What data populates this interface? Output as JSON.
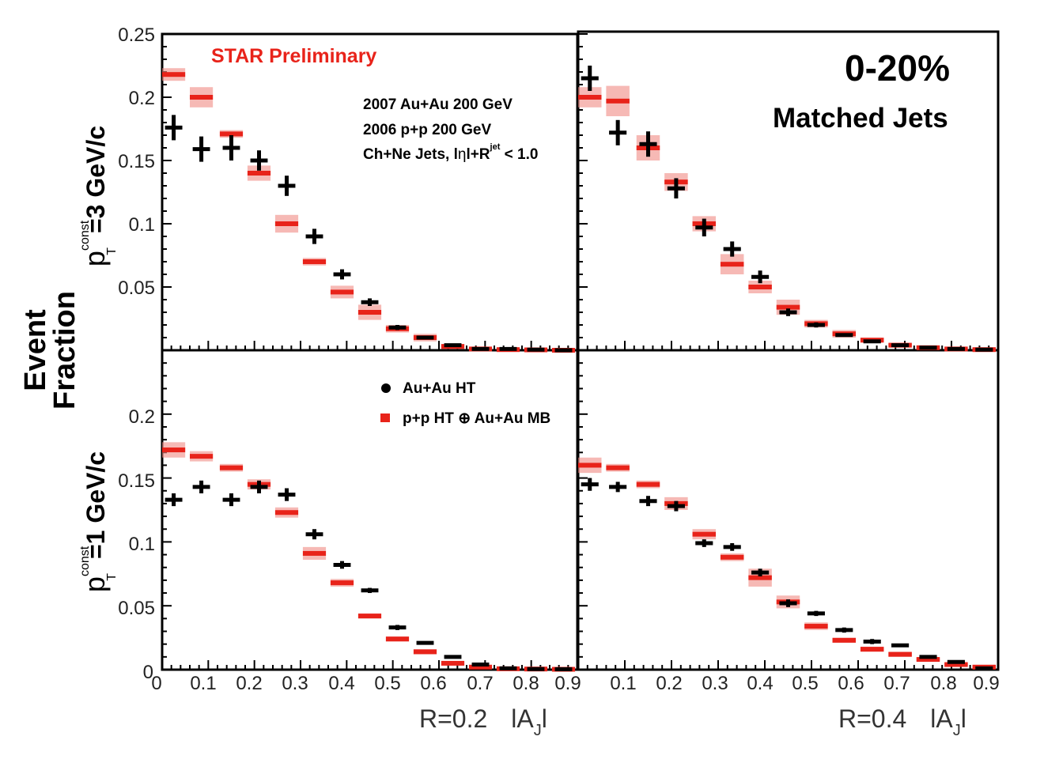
{
  "chart_data": {
    "type": "scatter",
    "figure_title": "0-20%",
    "figure_subtitle": "Matched Jets",
    "watermark": "STAR Preliminary",
    "ylabel": "Event Fraction",
    "ylabel_line1": "Event",
    "ylabel_line2": "Fraction",
    "row_labels": {
      "top": {
        "main": "p",
        "sup": "const",
        "sub": "T",
        "rest": "=3 GeV/c"
      },
      "bottom": {
        "main": "p",
        "sup": "const",
        "sub": "T",
        "rest": "=1 GeV/c"
      }
    },
    "annotations": {
      "line1": "2007 Au+Au 200 GeV",
      "line2": "2006 p+p 200 GeV",
      "line3_a": "Ch+Ne Jets, l",
      "line3_eta": "η",
      "line3_b": "l+R",
      "line3_sup": "jet",
      "line3_c": " < 1.0"
    },
    "legend": [
      {
        "label": "Au+Au HT",
        "color": "#000000",
        "marker": "dot"
      },
      {
        "label": "p+p HT ⊕ Au+Au MB",
        "color": "#e8231a",
        "marker": "square"
      }
    ],
    "xlabels": [
      {
        "r": "R=0.2",
        "a": "lA",
        "sub": "J",
        "end": "l"
      },
      {
        "r": "R=0.4",
        "a": "lA",
        "sub": "J",
        "end": "l"
      }
    ],
    "x_ticks_left": [
      "0",
      "0.1",
      "0.2",
      "0.3",
      "0.4",
      "0.5",
      "0.6",
      "0.7",
      "0.8",
      "0.9"
    ],
    "x_ticks_right": [
      "0.1",
      "0.2",
      "0.3",
      "0.4",
      "0.5",
      "0.6",
      "0.7",
      "0.8",
      "0.9"
    ],
    "y_ticks_top": [
      "0.25",
      "0.2",
      "0.15",
      "0.1",
      "0.05"
    ],
    "y_ticks_bottom": [
      "0.2",
      "0.15",
      "0.1",
      "0.05",
      "0"
    ],
    "xlim": [
      0,
      0.9
    ],
    "ylim": [
      0,
      0.25
    ],
    "x": [
      0.025,
      0.085,
      0.15,
      0.21,
      0.27,
      0.33,
      0.39,
      0.45,
      0.51,
      0.57,
      0.63,
      0.69,
      0.75,
      0.81,
      0.87
    ],
    "series_names": [
      "Au+Au HT",
      "p+p HT ⊕ Au+Au MB"
    ],
    "panels": [
      {
        "name": "R=0.2, pT const = 3 GeV/c",
        "auau": [
          0.176,
          0.159,
          0.16,
          0.15,
          0.13,
          0.09,
          0.06,
          0.038,
          0.018,
          0.01,
          0.004,
          0.001,
          0.001,
          0.0005,
          0.0
        ],
        "auau_err": [
          0.01,
          0.01,
          0.01,
          0.008,
          0.008,
          0.006,
          0.004,
          0.003,
          0.002,
          0.001,
          0.001,
          0.0005,
          0.0005,
          0.0003,
          0.0
        ],
        "pp": [
          0.218,
          0.2,
          0.171,
          0.14,
          0.1,
          0.07,
          0.046,
          0.03,
          0.017,
          0.01,
          0.003,
          0.001,
          0.0005,
          0.0003,
          0.0
        ],
        "pp_sys": [
          0.005,
          0.008,
          0.003,
          0.006,
          0.007,
          0.003,
          0.005,
          0.006,
          0.003,
          0.003,
          0.002,
          0.001,
          0.001,
          0.0005,
          0.0
        ]
      },
      {
        "name": "R=0.4, pT const = 3 GeV/c",
        "auau": [
          0.215,
          0.172,
          0.163,
          0.128,
          0.097,
          0.08,
          0.058,
          0.03,
          0.02,
          0.012,
          0.007,
          0.004,
          0.002,
          0.001,
          0.0005
        ],
        "auau_err": [
          0.01,
          0.01,
          0.01,
          0.008,
          0.007,
          0.006,
          0.005,
          0.003,
          0.002,
          0.001,
          0.001,
          0.001,
          0.0005,
          0.0003,
          0.0002
        ],
        "pp": [
          0.2,
          0.197,
          0.16,
          0.133,
          0.1,
          0.068,
          0.05,
          0.034,
          0.021,
          0.013,
          0.008,
          0.004,
          0.002,
          0.001,
          0.0005
        ],
        "pp_sys": [
          0.008,
          0.012,
          0.01,
          0.007,
          0.006,
          0.008,
          0.005,
          0.006,
          0.003,
          0.003,
          0.002,
          0.001,
          0.001,
          0.0005,
          0.0003
        ]
      },
      {
        "name": "R=0.2, pT const = 1 GeV/c",
        "auau": [
          0.133,
          0.143,
          0.133,
          0.143,
          0.137,
          0.106,
          0.082,
          0.062,
          0.033,
          0.021,
          0.01,
          0.004,
          0.001,
          0.0005,
          0.0003
        ],
        "auau_err": [
          0.005,
          0.005,
          0.005,
          0.005,
          0.005,
          0.004,
          0.003,
          0.002,
          0.002,
          0.001,
          0.001,
          0.0005,
          0.0003,
          0.0002,
          0.0001
        ],
        "pp": [
          0.172,
          0.167,
          0.158,
          0.145,
          0.123,
          0.091,
          0.068,
          0.042,
          0.024,
          0.014,
          0.005,
          0.002,
          0.0007,
          0.0005,
          0.0003
        ],
        "pp_sys": [
          0.006,
          0.004,
          0.003,
          0.004,
          0.004,
          0.005,
          0.003,
          0.002,
          0.002,
          0.002,
          0.001,
          0.0008,
          0.0005,
          0.0003,
          0.0002
        ]
      },
      {
        "name": "R=0.4, pT const = 1 GeV/c",
        "auau": [
          0.145,
          0.143,
          0.132,
          0.128,
          0.099,
          0.096,
          0.076,
          0.052,
          0.044,
          0.031,
          0.022,
          0.019,
          0.01,
          0.006,
          0.001
        ],
        "auau_err": [
          0.005,
          0.004,
          0.004,
          0.004,
          0.003,
          0.003,
          0.003,
          0.003,
          0.002,
          0.002,
          0.002,
          0.001,
          0.001,
          0.001,
          0.0005
        ],
        "pp": [
          0.16,
          0.158,
          0.145,
          0.13,
          0.106,
          0.088,
          0.072,
          0.053,
          0.034,
          0.023,
          0.016,
          0.012,
          0.008,
          0.004,
          0.002
        ],
        "pp_sys": [
          0.006,
          0.003,
          0.003,
          0.005,
          0.004,
          0.003,
          0.007,
          0.005,
          0.003,
          0.002,
          0.002,
          0.002,
          0.001,
          0.001,
          0.0008
        ]
      }
    ]
  }
}
